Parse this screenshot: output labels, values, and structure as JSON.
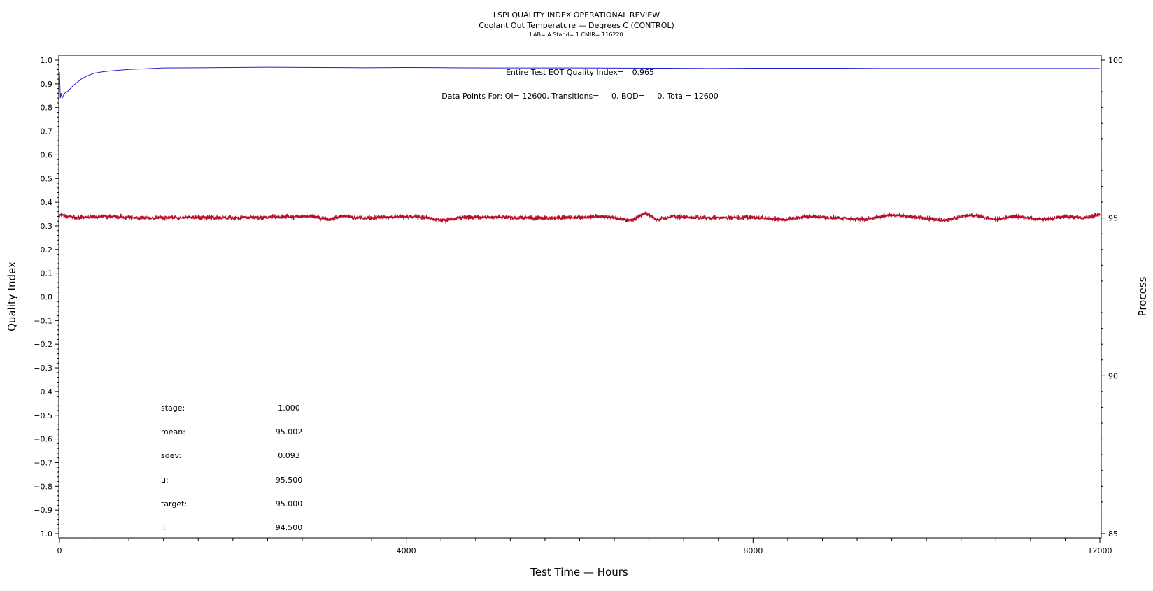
{
  "chart_data": {
    "type": "line",
    "title": "LSPI QUALITY INDEX OPERATIONAL REVIEW",
    "subtitle": "Coolant Out Temperature — Degrees C (CONTROL)",
    "subtitle2": "LAB= A Stand= 1 CMIR= 116220",
    "xlabel": "Test Time — Hours",
    "ylabel": "Quality Index",
    "y2label": "Process",
    "xlim": [
      0,
      12000
    ],
    "ylim": [
      -1.0,
      1.0
    ],
    "y2lim": [
      85,
      100
    ],
    "x_ticks": [
      "0",
      "4000",
      "8000",
      "12000"
    ],
    "y_ticks": [
      "1.0",
      "0.9",
      "0.8",
      "0.7",
      "0.6",
      "0.5",
      "0.4",
      "0.3",
      "0.2",
      "0.1",
      "0.0",
      "-0.1",
      "-0.2",
      "-0.3",
      "-0.4",
      "-0.5",
      "-0.6",
      "-0.7",
      "-0.8",
      "-0.9",
      "-1.0"
    ],
    "y2_ticks": [
      "100",
      "95",
      "90",
      "85"
    ],
    "grid": false,
    "colors": {
      "quality_index": "#2020d0",
      "process": "#b8102a"
    },
    "annotations": {
      "eot_label": "Entire Test EOT Quality Index=",
      "eot_value": "0.965",
      "points_label": "Data Points For: QI= 12600, Transitions=     0, BQD=     0, Total= 12600"
    },
    "stats": [
      {
        "label": "stage:",
        "value": "1.000"
      },
      {
        "label": "mean:",
        "value": "95.002"
      },
      {
        "label": "sdev:",
        "value": "0.093"
      },
      {
        "label": "u:",
        "value": "95.500"
      },
      {
        "label": "target:",
        "value": "95.000"
      },
      {
        "label": "l:",
        "value": "94.500"
      }
    ],
    "series": [
      {
        "axis": "left",
        "x": [
          0,
          10,
          20,
          30,
          60,
          100,
          150,
          200,
          250,
          300,
          350,
          400,
          500,
          600,
          700,
          800,
          1000,
          1200,
          1600,
          2000,
          2400,
          3000,
          3500,
          4000,
          4500,
          5000,
          6000,
          7000,
          7500,
          8000,
          9000,
          9500,
          10000,
          10500,
          11000,
          11500,
          12000
        ],
        "values": [
          0.95,
          0.84,
          0.86,
          0.84,
          0.86,
          0.87,
          0.89,
          0.905,
          0.92,
          0.93,
          0.938,
          0.945,
          0.951,
          0.955,
          0.958,
          0.961,
          0.964,
          0.967,
          0.968,
          0.969,
          0.97,
          0.969,
          0.968,
          0.969,
          0.968,
          0.967,
          0.967,
          0.966,
          0.965,
          0.966,
          0.966,
          0.965,
          0.965,
          0.965,
          0.965,
          0.965,
          0.965
        ]
      },
      {
        "axis": "right",
        "x": [
          0,
          200,
          500,
          1000,
          1500,
          2000,
          2500,
          2900,
          3100,
          3250,
          3500,
          4000,
          4250,
          4450,
          4600,
          5000,
          5500,
          6000,
          6300,
          6500,
          6600,
          6750,
          6900,
          7100,
          7500,
          8000,
          8400,
          8600,
          9000,
          9300,
          9600,
          9800,
          10000,
          10200,
          10500,
          10800,
          11000,
          11400,
          11600,
          11800,
          12000
        ],
        "values": [
          95.1,
          95.0,
          95.05,
          95.0,
          95.02,
          95.0,
          95.03,
          95.05,
          94.95,
          95.05,
          95.0,
          95.05,
          95.0,
          94.92,
          95.0,
          95.03,
          95.0,
          95.02,
          95.05,
          94.95,
          94.92,
          95.15,
          94.95,
          95.05,
          95.0,
          95.02,
          94.95,
          95.05,
          95.0,
          94.95,
          95.1,
          95.05,
          95.0,
          94.92,
          95.1,
          94.95,
          95.05,
          94.95,
          95.05,
          95.0,
          95.1
        ]
      }
    ]
  }
}
